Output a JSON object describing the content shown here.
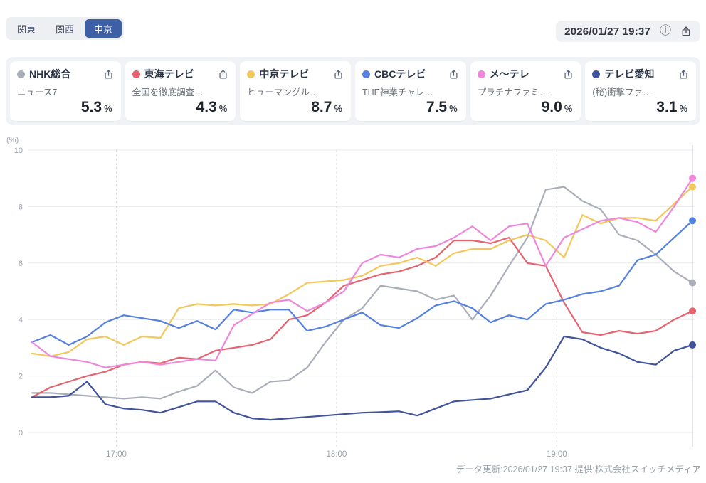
{
  "tabs": {
    "items": [
      {
        "label": "関東",
        "active": false
      },
      {
        "label": "関西",
        "active": false
      },
      {
        "label": "中京",
        "active": true
      }
    ]
  },
  "header": {
    "timestamp": "2026/01/27 19:37",
    "info_icon": "info-circle",
    "share_icon": "share-box-arrow-up",
    "active_tab_color": "#3d5fa6"
  },
  "channels": [
    {
      "name": "NHK総合",
      "program": "ニュース7",
      "value": "5.3",
      "unit": "%",
      "color": "#a9aeb8"
    },
    {
      "name": "東海テレビ",
      "program": "全国を徹底調査…",
      "value": "4.3",
      "unit": "%",
      "color": "#e5636e"
    },
    {
      "name": "中京テレビ",
      "program": "ヒューマングル…",
      "value": "8.7",
      "unit": "%",
      "color": "#f2c75c"
    },
    {
      "name": "CBCテレビ",
      "program": "THE神業チャレ…",
      "value": "7.5",
      "unit": "%",
      "color": "#5480e0"
    },
    {
      "name": "メ〜テレ",
      "program": "プラチナファミ…",
      "value": "9.0",
      "unit": "%",
      "color": "#ee87dc"
    },
    {
      "name": "テレビ愛知",
      "program": "(秘)衝撃ファ…",
      "value": "3.1",
      "unit": "%",
      "color": "#41549b"
    }
  ],
  "footer": {
    "text": "データ更新:2026/01/27 19:37  提供:株式会社スイッチメディア"
  },
  "chart_data": {
    "type": "line",
    "title": "",
    "xlabel": "",
    "ylabel": "(%)",
    "ylim": [
      0,
      10
    ],
    "yticks": [
      0,
      2,
      4,
      6,
      8,
      10
    ],
    "grid": true,
    "x_span_minutes": 180,
    "sample_step_min": 5,
    "xticks": [
      {
        "label": "17:00",
        "min": 23
      },
      {
        "label": "18:00",
        "min": 83
      },
      {
        "label": "19:00",
        "min": 143
      }
    ],
    "current_time_marker_min": 180,
    "series": [
      {
        "name": "NHK総合",
        "color": "#a9aeb8",
        "values": [
          1.4,
          1.4,
          1.35,
          1.3,
          1.25,
          1.2,
          1.25,
          1.2,
          1.45,
          1.65,
          2.2,
          1.6,
          1.4,
          1.8,
          1.85,
          2.3,
          3.2,
          4.0,
          4.4,
          5.2,
          5.1,
          5.0,
          4.7,
          4.85,
          4.0,
          4.85,
          5.9,
          6.9,
          8.6,
          8.7,
          8.2,
          7.9,
          7.0,
          6.8,
          6.3,
          5.7,
          5.3
        ]
      },
      {
        "name": "東海テレビ",
        "color": "#e5636e",
        "values": [
          1.25,
          1.6,
          1.8,
          2.0,
          2.15,
          2.4,
          2.5,
          2.45,
          2.65,
          2.6,
          2.9,
          3.0,
          3.1,
          3.3,
          4.0,
          4.15,
          4.6,
          5.2,
          5.4,
          5.6,
          5.7,
          5.9,
          6.2,
          6.8,
          6.8,
          6.7,
          6.9,
          6.0,
          5.9,
          4.6,
          3.55,
          3.45,
          3.6,
          3.5,
          3.6,
          4.0,
          4.3
        ]
      },
      {
        "name": "中京テレビ",
        "color": "#f2c75c",
        "values": [
          2.8,
          2.7,
          2.85,
          3.3,
          3.4,
          3.1,
          3.4,
          3.35,
          4.4,
          4.55,
          4.5,
          4.55,
          4.5,
          4.55,
          4.9,
          5.3,
          5.35,
          5.4,
          5.55,
          5.9,
          6.0,
          6.2,
          5.9,
          6.35,
          6.5,
          6.5,
          6.8,
          7.0,
          6.8,
          6.2,
          7.7,
          7.4,
          7.6,
          7.6,
          7.5,
          8.1,
          8.7
        ]
      },
      {
        "name": "CBCテレビ",
        "color": "#5480e0",
        "values": [
          3.2,
          3.45,
          3.1,
          3.4,
          3.9,
          4.15,
          4.05,
          3.95,
          3.7,
          3.95,
          3.65,
          4.35,
          4.25,
          4.35,
          4.35,
          3.6,
          3.75,
          4.0,
          4.25,
          3.8,
          3.7,
          4.05,
          4.5,
          4.65,
          4.4,
          3.9,
          4.15,
          4.0,
          4.55,
          4.7,
          4.9,
          5.0,
          5.2,
          6.1,
          6.3,
          6.9,
          7.5
        ]
      },
      {
        "name": "メ〜テレ",
        "color": "#ee87dc",
        "values": [
          3.2,
          2.7,
          2.6,
          2.5,
          2.3,
          2.4,
          2.5,
          2.4,
          2.5,
          2.6,
          2.55,
          3.8,
          4.2,
          4.6,
          4.7,
          4.3,
          4.6,
          5.0,
          6.0,
          6.3,
          6.2,
          6.5,
          6.6,
          6.9,
          7.3,
          6.8,
          7.3,
          7.4,
          5.9,
          6.9,
          7.2,
          7.5,
          7.6,
          7.45,
          7.1,
          8.0,
          9.0
        ]
      },
      {
        "name": "テレビ愛知",
        "color": "#41549b",
        "values": [
          1.25,
          1.25,
          1.3,
          1.8,
          1.0,
          0.85,
          0.8,
          0.7,
          0.9,
          1.1,
          1.1,
          0.7,
          0.5,
          0.45,
          0.5,
          0.55,
          0.6,
          0.65,
          0.7,
          0.72,
          0.75,
          0.6,
          0.85,
          1.1,
          1.15,
          1.2,
          1.35,
          1.5,
          2.3,
          3.4,
          3.3,
          3.0,
          2.8,
          2.5,
          2.4,
          2.9,
          3.1
        ]
      }
    ]
  }
}
